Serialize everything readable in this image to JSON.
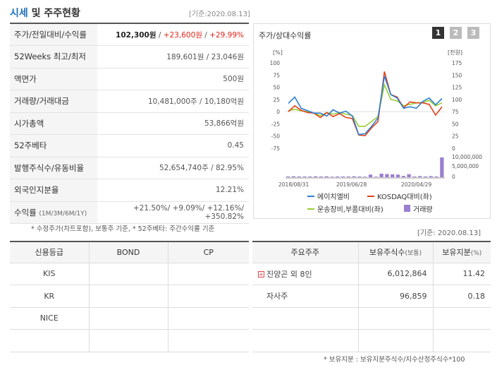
{
  "header": {
    "title_highlight": "시세",
    "title_rest": " 및 주주현황",
    "date": "[기준:2020.08.13]"
  },
  "price_table": [
    {
      "label": "주가/전일대비/수익률",
      "v1": "102,300원",
      "sep1": " / ",
      "v2": "+23,600원",
      "sep2": " / ",
      "v3": "+29.99%"
    },
    {
      "label": "52Weeks 최고/최저",
      "value": "189,601원 / 23,046원"
    },
    {
      "label": "액면가",
      "value": "500원"
    },
    {
      "label": "거래량/거래대금",
      "value": "10,481,000주 / 10,180억원"
    },
    {
      "label": "시가총액",
      "value": "53,866억원"
    },
    {
      "label": "52주베타",
      "value": "0.45"
    },
    {
      "label": "발행주식수/유동비율",
      "value": "52,654,740주 / 82.95%"
    },
    {
      "label": "외국인지분율",
      "value": "12.21%"
    },
    {
      "label": "수익률",
      "label_sub": "(1M/3M/6M/1Y)",
      "value": "+21.50%/ +9.09%/ +12.16%/ +350.82%"
    }
  ],
  "note1": "* 수정주가(차트포함), 보통주 기준, * 52주베타: 주간수익률 기준",
  "chart_panel": {
    "title": "주가/상대수익률",
    "pages": [
      "1",
      "2",
      "3"
    ],
    "active_page": "1",
    "date": "[기준: 2020.08.13]"
  },
  "chart_data": {
    "type": "line",
    "title": "주가/상대수익률",
    "left_axis_label": "[%]",
    "right_axis_label": "[천원]",
    "left_ticks": [
      "100",
      "75",
      "50",
      "25",
      "0",
      "-25",
      "-50",
      "-75"
    ],
    "right_ticks": [
      "175",
      "150",
      "125",
      "100",
      "75",
      "50",
      "25",
      "0"
    ],
    "volume_ticks": [
      "10,000,000",
      "5,000,000",
      "0"
    ],
    "x_labels": [
      "2018/08/31",
      "2019/06/28",
      "2020/04/29"
    ],
    "ylim_left": [
      -75,
      100
    ],
    "ylim_right": [
      0,
      175
    ],
    "series": [
      {
        "name": "에이치엘비",
        "color": "#2d7fd3",
        "axis": "right",
        "values": [
          92,
          105,
          82,
          77,
          72,
          72,
          66,
          79,
          72,
          76,
          66,
          28,
          30,
          45,
          62,
          148,
          110,
          103,
          82,
          85,
          82,
          96,
          103,
          89,
          102
        ]
      },
      {
        "name": "KOSDAQ대비(좌)",
        "color": "#e0401a",
        "axis": "left",
        "values": [
          0,
          12,
          3,
          -2,
          -3,
          -12,
          -2,
          -10,
          -4,
          -12,
          -14,
          -48,
          -49,
          -33,
          -20,
          82,
          35,
          30,
          8,
          20,
          18,
          18,
          15,
          -7,
          10
        ]
      },
      {
        "name": "운송장비,부품대비(좌)",
        "color": "#9acd32",
        "axis": "left",
        "values": [
          2,
          5,
          2,
          0,
          -3,
          -8,
          -2,
          -5,
          -2,
          -5,
          -8,
          -30,
          -30,
          -20,
          -10,
          55,
          25,
          22,
          12,
          15,
          18,
          19,
          23,
          12,
          18
        ]
      }
    ],
    "volume": {
      "name": "거래량",
      "color": "#9a7fd0",
      "values": [
        0.4,
        0.5,
        0.4,
        0.4,
        0.4,
        0.5,
        0.4,
        0.5,
        0.3,
        0.4,
        0.4,
        0.4,
        0.5,
        0.4,
        0.3,
        1.4,
        0.3,
        1.9,
        1.7,
        1.5,
        1.4,
        0.7,
        1.6,
        0.4,
        0.6,
        0.4,
        0.6,
        0.4,
        10.5
      ]
    }
  },
  "credit_table": {
    "headers": [
      "신용등급",
      "BOND",
      "CP"
    ],
    "rows": [
      [
        "KIS",
        "",
        ""
      ],
      [
        "KR",
        "",
        ""
      ],
      [
        "NICE",
        "",
        ""
      ],
      [
        "",
        "",
        ""
      ]
    ]
  },
  "holder_table": {
    "headers": [
      "주요주주",
      "보유주식수",
      "(보통)",
      "보유지분",
      "(%)"
    ],
    "rows": [
      {
        "name": "진양곤 외 8인",
        "shares": "6,012,864",
        "pct": "11.42",
        "expand": "+"
      },
      {
        "name": "자사주",
        "shares": "96,859",
        "pct": "0.18",
        "expand": ""
      },
      {
        "name": "",
        "shares": "",
        "pct": "",
        "expand": ""
      },
      {
        "name": "",
        "shares": "",
        "pct": "",
        "expand": ""
      }
    ]
  },
  "note2": "* 보유지분 : 보유지분주식수/지수산정주식수*100",
  "colors": {
    "accent": "#1a6fb8",
    "up": "#e0241a",
    "page_active": "#333333",
    "page_inactive": "#bbbbbb"
  }
}
